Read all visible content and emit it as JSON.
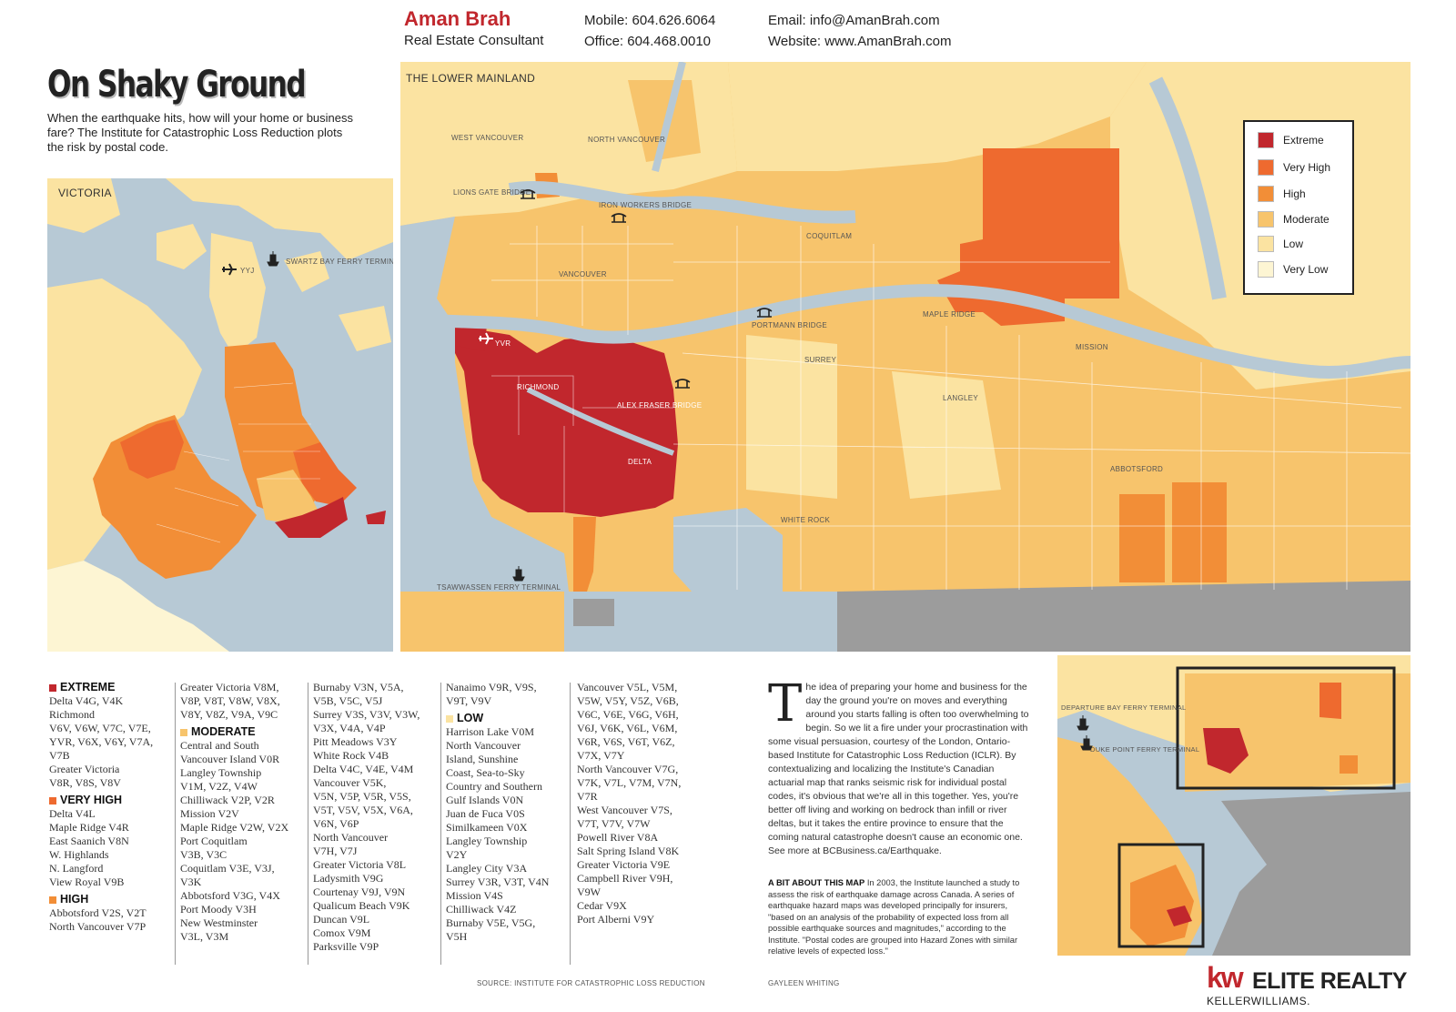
{
  "header": {
    "agent_name": "Aman Brah",
    "agent_role": "Real Estate Consultant",
    "mobile": "Mobile: 604.626.6064",
    "office": "Office: 604.468.0010",
    "email": "Email: info@AmanBrah.com",
    "website": "Website: www.AmanBrah.com"
  },
  "title": "On Shaky Ground",
  "intro": "When the earthquake hits, how will your home or business fare? The Institute for Catastrophic Loss Reduction plots the risk by postal code.",
  "colors": {
    "extreme": "#c1272d",
    "very_high": "#ee6a2f",
    "high": "#f28e37",
    "moderate": "#f7c46c",
    "low": "#fbe3a1",
    "very_low": "#fdf5d3",
    "water": "#b7c9d5",
    "us_land": "#9c9c9c"
  },
  "legend": {
    "items": [
      {
        "label": "Extreme",
        "color": "#c1272d"
      },
      {
        "label": "Very High",
        "color": "#ee6a2f"
      },
      {
        "label": "High",
        "color": "#f28e37"
      },
      {
        "label": "Moderate",
        "color": "#f7c46c"
      },
      {
        "label": "Low",
        "color": "#fbe3a1"
      },
      {
        "label": "Very Low",
        "color": "#fdf5d3"
      }
    ]
  },
  "victoria_map": {
    "title": "VICTORIA",
    "labels": {
      "yyj": "YYJ",
      "swartz": "SWARTZ BAY FERRY TERMINAL"
    }
  },
  "main_map": {
    "title": "THE LOWER MAINLAND",
    "labels": {
      "west_vancouver": "WEST VANCOUVER",
      "north_vancouver": "NORTH VANCOUVER",
      "lions_gate": "LIONS GATE BRIDGE",
      "ironworkers": "IRON WORKERS BRIDGE",
      "vancouver": "VANCOUVER",
      "coquitlam": "COQUITLAM",
      "port_mann": "PORTMANN BRIDGE",
      "maple_ridge": "MAPLE RIDGE",
      "yvr": "YVR",
      "richmond": "RICHMOND",
      "alex_fraser": "ALEX FRASER BRIDGE",
      "surrey": "SURREY",
      "mission": "MISSION",
      "langley": "LANGLEY",
      "delta": "DELTA",
      "abbotsford": "ABBOTSFORD",
      "white_rock": "WHITE ROCK",
      "tsawwassen": "TSAWWASSEN FERRY TERMINAL"
    }
  },
  "inset_map": {
    "labels": {
      "departure_bay": "DEPARTURE BAY FERRY TERMINAL",
      "duke_point": "DUKE POINT FERRY TERMINAL"
    }
  },
  "risk_lists": {
    "col1": [
      {
        "type": "heading",
        "text": "EXTREME",
        "color": "#c1272d"
      },
      {
        "type": "line",
        "text": "Delta V4G, V4K"
      },
      {
        "type": "line",
        "text": "Richmond"
      },
      {
        "type": "line",
        "text": "V6V, V6W, V7C, V7E,"
      },
      {
        "type": "line",
        "text": "YVR, V6X, V6Y, V7A,"
      },
      {
        "type": "line",
        "text": "V7B"
      },
      {
        "type": "line",
        "text": "Greater Victoria"
      },
      {
        "type": "line",
        "text": "V8R, V8S, V8V"
      },
      {
        "type": "heading",
        "text": "VERY HIGH",
        "color": "#ee6a2f"
      },
      {
        "type": "line",
        "text": "Delta V4L"
      },
      {
        "type": "line",
        "text": "Maple Ridge V4R"
      },
      {
        "type": "line",
        "text": "East Saanich V8N"
      },
      {
        "type": "line",
        "text": "W. Highlands"
      },
      {
        "type": "line",
        "text": "N. Langford"
      },
      {
        "type": "line",
        "text": "View Royal V9B"
      },
      {
        "type": "heading",
        "text": "HIGH",
        "color": "#f28e37"
      },
      {
        "type": "line",
        "text": "Abbotsford V2S, V2T"
      },
      {
        "type": "line",
        "text": "North Vancouver V7P"
      }
    ],
    "col2": [
      {
        "type": "line",
        "text": "Greater Victoria V8M,"
      },
      {
        "type": "line",
        "text": "V8P, V8T, V8W, V8X,"
      },
      {
        "type": "line",
        "text": "V8Y, V8Z, V9A, V9C"
      },
      {
        "type": "heading",
        "text": "MODERATE",
        "color": "#f7c46c"
      },
      {
        "type": "line",
        "text": "Central and South"
      },
      {
        "type": "line",
        "text": "Vancouver Island V0R"
      },
      {
        "type": "line",
        "text": "Langley Township"
      },
      {
        "type": "line",
        "text": "V1M, V2Z, V4W"
      },
      {
        "type": "line",
        "text": "Chilliwack V2P, V2R"
      },
      {
        "type": "line",
        "text": "Mission V2V"
      },
      {
        "type": "line",
        "text": "Maple Ridge V2W, V2X"
      },
      {
        "type": "line",
        "text": "Port Coquitlam"
      },
      {
        "type": "line",
        "text": "V3B, V3C"
      },
      {
        "type": "line",
        "text": "Coquitlam V3E, V3J,"
      },
      {
        "type": "line",
        "text": "V3K"
      },
      {
        "type": "line",
        "text": "Abbotsford V3G, V4X"
      },
      {
        "type": "line",
        "text": "Port Moody V3H"
      },
      {
        "type": "line",
        "text": "New Westminster"
      },
      {
        "type": "line",
        "text": "V3L, V3M"
      }
    ],
    "col3": [
      {
        "type": "line",
        "text": "Burnaby V3N, V5A,"
      },
      {
        "type": "line",
        "text": "V5B, V5C, V5J"
      },
      {
        "type": "line",
        "text": "Surrey V3S, V3V, V3W,"
      },
      {
        "type": "line",
        "text": "V3X, V4A, V4P"
      },
      {
        "type": "line",
        "text": "Pitt Meadows V3Y"
      },
      {
        "type": "line",
        "text": "White Rock V4B"
      },
      {
        "type": "line",
        "text": "Delta V4C, V4E, V4M"
      },
      {
        "type": "line",
        "text": "Vancouver V5K,"
      },
      {
        "type": "line",
        "text": " V5N, V5P, V5R, V5S,"
      },
      {
        "type": "line",
        "text": "V5T, V5V, V5X, V6A,"
      },
      {
        "type": "line",
        "text": "V6N, V6P"
      },
      {
        "type": "line",
        "text": "North Vancouver"
      },
      {
        "type": "line",
        "text": "V7H, V7J"
      },
      {
        "type": "line",
        "text": "Greater Victoria V8L"
      },
      {
        "type": "line",
        "text": "Ladysmith V9G"
      },
      {
        "type": "line",
        "text": "Courtenay V9J, V9N"
      },
      {
        "type": "line",
        "text": "Qualicum Beach V9K"
      },
      {
        "type": "line",
        "text": "Duncan V9L"
      },
      {
        "type": "line",
        "text": "Comox V9M"
      },
      {
        "type": "line",
        "text": "Parksville V9P"
      }
    ],
    "col4": [
      {
        "type": "line",
        "text": "Nanaimo V9R, V9S,"
      },
      {
        "type": "line",
        "text": "V9T, V9V"
      },
      {
        "type": "heading",
        "text": "LOW",
        "color": "#fbe3a1"
      },
      {
        "type": "line",
        "text": "Harrison Lake V0M"
      },
      {
        "type": "line",
        "text": "North Vancouver"
      },
      {
        "type": "line",
        "text": "Island, Sunshine"
      },
      {
        "type": "line",
        "text": "Coast, Sea-to-Sky"
      },
      {
        "type": "line",
        "text": "Country and Southern"
      },
      {
        "type": "line",
        "text": "Gulf Islands V0N"
      },
      {
        "type": "line",
        "text": "Juan de Fuca V0S"
      },
      {
        "type": "line",
        "text": "Similkameen V0X"
      },
      {
        "type": "line",
        "text": "Langley Township"
      },
      {
        "type": "line",
        "text": "V2Y"
      },
      {
        "type": "line",
        "text": "Langley City V3A"
      },
      {
        "type": "line",
        "text": "Surrey V3R, V3T, V4N"
      },
      {
        "type": "line",
        "text": "Mission V4S"
      },
      {
        "type": "line",
        "text": "Chilliwack V4Z"
      },
      {
        "type": "line",
        "text": "Burnaby V5E, V5G,"
      },
      {
        "type": "line",
        "text": "V5H"
      }
    ],
    "col5": [
      {
        "type": "line",
        "text": "Vancouver V5L, V5M,"
      },
      {
        "type": "line",
        "text": "V5W, V5Y, V5Z, V6B,"
      },
      {
        "type": "line",
        "text": "V6C, V6E, V6G, V6H,"
      },
      {
        "type": "line",
        "text": "V6J, V6K, V6L, V6M,"
      },
      {
        "type": "line",
        "text": "V6R, V6S, V6T, V6Z,"
      },
      {
        "type": "line",
        "text": "V7X, V7Y"
      },
      {
        "type": "line",
        "text": "North Vancouver V7G,"
      },
      {
        "type": "line",
        "text": "V7K, V7L, V7M, V7N,"
      },
      {
        "type": "line",
        "text": "V7R"
      },
      {
        "type": "line",
        "text": "West Vancouver V7S,"
      },
      {
        "type": "line",
        "text": "V7T, V7V, V7W"
      },
      {
        "type": "line",
        "text": "Powell River V8A"
      },
      {
        "type": "line",
        "text": "Salt Spring Island V8K"
      },
      {
        "type": "line",
        "text": "Greater Victoria V9E"
      },
      {
        "type": "line",
        "text": "Campbell River V9H,"
      },
      {
        "type": "line",
        "text": "V9W"
      },
      {
        "type": "line",
        "text": "Cedar V9X"
      },
      {
        "type": "line",
        "text": "Port Alberni V9Y"
      }
    ]
  },
  "article": {
    "dropcap": "T",
    "body": "he idea of preparing your home and business for the day the ground you're on moves and everything around you starts falling is often too overwhelming to begin. So we lit a fire under your procrastination with some visual persuasion, courtesy of the London, Ontario-based Institute for Catastrophic Loss Reduction (ICLR). By contextualizing and localizing the Institute's Canadian actuarial map that ranks seismic risk for individual postal codes, it's obvious that we're all in this together. Yes, you're better off living and working on bedrock than infill or river deltas, but it takes the entire province to ensure that the coming natural catastrophe doesn't cause an economic one. See more at BCBusiness.ca/Earthquake.",
    "about_heading": "A BIT ABOUT THIS MAP",
    "about_body": " In 2003, the Institute launched a study to assess the risk of earthquake damage across Canada. A series of earthquake hazard maps was developed principally for insurers, \"based on an analysis of the probability of expected loss from all possible earthquake sources and magnitudes,\" according to the Institute. \"Postal codes are grouped into Hazard Zones with similar relative levels of expected loss.\""
  },
  "footer": {
    "source": "SOURCE: INSTITUTE FOR CATASTROPHIC LOSS REDUCTION",
    "credit": "GAYLEEN WHITING",
    "logo_kw": "kw",
    "logo_name": "ELITE REALTY",
    "logo_sub": "KELLERWILLIAMS."
  }
}
